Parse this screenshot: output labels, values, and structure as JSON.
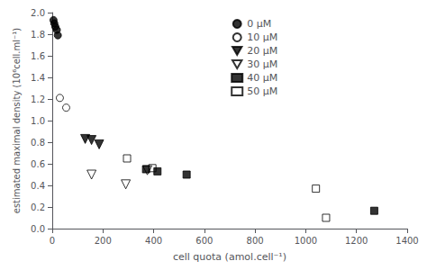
{
  "chart_data": {
    "type": "scatter",
    "xlabel": "cell quota (amol.cell⁻¹)",
    "ylabel": "estimated maximal density (10⁶cell.ml⁻¹)",
    "xlim": [
      0,
      1400
    ],
    "ylim": [
      0,
      2
    ],
    "xticks": [
      0,
      200,
      400,
      600,
      800,
      1000,
      1200,
      1400
    ],
    "yticks": [
      {
        "value": 0,
        "label": "0.0"
      },
      0.2,
      0.4,
      0.6,
      0.8,
      {
        "value": 1,
        "label": "1.0"
      },
      1.2,
      1.4,
      1.6,
      1.8,
      {
        "value": 2,
        "label": "2.0"
      }
    ],
    "grid": false,
    "legend": "upper center",
    "series": [
      {
        "name": "0 μM",
        "marker": "circle",
        "color": "#000000",
        "x": [
          5,
          8,
          12,
          18,
          22
        ],
        "y": [
          1.93,
          1.9,
          1.87,
          1.84,
          1.79
        ]
      },
      {
        "name": "10 μM",
        "marker": "circle-open",
        "color": "#000000",
        "x": [
          30,
          55
        ],
        "y": [
          1.21,
          1.12
        ]
      },
      {
        "name": "20 μM",
        "marker": "triangle-down",
        "color": "#000000",
        "x": [
          130,
          155,
          185
        ],
        "y": [
          0.83,
          0.82,
          0.78
        ]
      },
      {
        "name": "30 μM",
        "marker": "triangle-down-open",
        "color": "#000000",
        "x": [
          155,
          290,
          375
        ],
        "y": [
          0.5,
          0.41,
          0.54
        ]
      },
      {
        "name": "40 μM",
        "marker": "square",
        "color": "#000000",
        "x": [
          370,
          415,
          530,
          1270
        ],
        "y": [
          0.55,
          0.53,
          0.5,
          0.165
        ]
      },
      {
        "name": "50 μM",
        "marker": "square-open",
        "color": "#000000",
        "x": [
          295,
          395,
          1040,
          1080
        ],
        "y": [
          0.65,
          0.56,
          0.37,
          0.1
        ]
      }
    ]
  }
}
